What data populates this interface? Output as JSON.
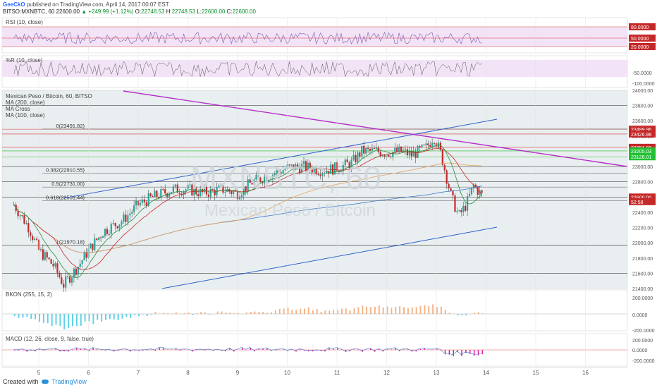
{
  "header": {
    "author": "GeeCkO",
    "published": "published on TradingView.com, April 14, 2017 00:07 EST",
    "symbol": "BITSO:MXNBTC, 60",
    "last": "22600.00",
    "change": "▲ +249.99 (+1.12%)",
    "o_label": "O:",
    "o": "22748.53",
    "h_label": "H:",
    "h": "22748.53",
    "l_label": "L:",
    "l": "22600.00",
    "c_label": "C:",
    "c": "22600.00"
  },
  "footer": {
    "created": "Created with",
    "brand": "TradingView"
  },
  "colors": {
    "up": "#26a69a",
    "down": "#c62828",
    "ma200": "#3a78c9",
    "ma100": "#e6a15a",
    "ma20": "#c62828",
    "fib": "#333",
    "purple": "#b62ec9",
    "bluetrend": "#2e62c9",
    "rsi": "#7b5aa8",
    "band": "#f3e3f7",
    "bkon_fill": "#f2a36b",
    "bkon_neg": "#3ac8e0",
    "bkon_pos": "#2fa84a",
    "macd_hist": "#e020a0"
  },
  "panels": {
    "rsi": {
      "label": "RSI (10, close)",
      "levels": [
        "80.0000",
        "50.0000",
        "20.0000"
      ]
    },
    "wr": {
      "label": "%R (10, close)",
      "ticks": [
        "-50.0000",
        "-100.0000"
      ]
    },
    "main": {
      "title": "Mexican Peso / Bitcoin, 60, BITSO",
      "ma200": "MA (200, close)",
      "macross": "MA Cross",
      "ma100": "MA (100, close)",
      "watermark1": "MXNBTC, 60",
      "watermark2": "Mexican Peso / Bitcoin",
      "fib": [
        {
          "label": "0(23491.82)",
          "price": 23491.82
        },
        {
          "label": "0.382(22910.55)",
          "price": 22910.55
        },
        {
          "label": "0.5(22731.00)",
          "price": 22731.0
        },
        {
          "label": "0.618(22551.44)",
          "price": 22551.44
        },
        {
          "label": "1(21970.18)",
          "price": 21970.18
        }
      ],
      "price_ticks": [
        "24000.00",
        "23800.00",
        "23600.00",
        "23400.00",
        "23200.00",
        "23000.00",
        "22800.00",
        "22600.00",
        "22400.00",
        "22200.00",
        "22000.00",
        "21800.00",
        "21600.00",
        "21400.00"
      ],
      "price_badges": [
        {
          "text": "23489.96",
          "price": 23489.96,
          "bg": "#c62828"
        },
        {
          "text": "23426.98",
          "price": 23426.98,
          "bg": "#c62828"
        },
        {
          "text": "23251.99",
          "price": 23251.99,
          "bg": "#c62828"
        },
        {
          "text": "23205.03",
          "price": 23205.03,
          "bg": "#22c032"
        },
        {
          "text": "23128.01",
          "price": 23128.01,
          "bg": "#22c032"
        },
        {
          "text": "22600.00",
          "price": 22600.0,
          "bg": "#c62828"
        },
        {
          "text": "52:58",
          "price": 22540,
          "bg": "#c62828"
        }
      ]
    },
    "bkon": {
      "label": "BKON (255, 15, 2)",
      "ticks": [
        "200.0000",
        "0.0000",
        "-200.0000"
      ]
    },
    "macd": {
      "label": "MACD (12, 26, close, 9, false, true)",
      "ticks": [
        "200.0000",
        "0.0000",
        "-200.0000"
      ]
    }
  },
  "xaxis": {
    "labels": [
      "5",
      "6",
      "7",
      "8",
      "9",
      "10",
      "11",
      "12",
      "13",
      "14",
      "15",
      "16"
    ]
  },
  "chart_data": {
    "type": "candlestick",
    "title": "Mexican Peso / Bitcoin, 60, BITSO",
    "ylim": [
      21400,
      24000
    ],
    "x_labels": [
      "5",
      "6",
      "7",
      "8",
      "9",
      "10",
      "11",
      "12",
      "13",
      "14",
      "15",
      "16"
    ],
    "approx_close_path": [
      {
        "day": 4.5,
        "close": 22500
      },
      {
        "day": 4.8,
        "close": 22200
      },
      {
        "day": 5.0,
        "close": 21900
      },
      {
        "day": 5.3,
        "close": 21700
      },
      {
        "day": 5.5,
        "close": 21450
      },
      {
        "day": 5.8,
        "close": 21700
      },
      {
        "day": 6.0,
        "close": 21900
      },
      {
        "day": 6.3,
        "close": 22150
      },
      {
        "day": 6.7,
        "close": 22300
      },
      {
        "day": 7.0,
        "close": 22500
      },
      {
        "day": 7.3,
        "close": 22600
      },
      {
        "day": 7.7,
        "close": 22700
      },
      {
        "day": 8.0,
        "close": 22700
      },
      {
        "day": 8.3,
        "close": 22650
      },
      {
        "day": 8.7,
        "close": 22700
      },
      {
        "day": 9.0,
        "close": 22650
      },
      {
        "day": 9.3,
        "close": 22800
      },
      {
        "day": 9.7,
        "close": 22900
      },
      {
        "day": 10.0,
        "close": 22980
      },
      {
        "day": 10.3,
        "close": 23000
      },
      {
        "day": 10.7,
        "close": 22950
      },
      {
        "day": 11.0,
        "close": 22980
      },
      {
        "day": 11.3,
        "close": 23050
      },
      {
        "day": 11.5,
        "close": 23200
      },
      {
        "day": 11.8,
        "close": 23200
      },
      {
        "day": 12.0,
        "close": 23180
      },
      {
        "day": 12.3,
        "close": 23200
      },
      {
        "day": 12.5,
        "close": 23150
      },
      {
        "day": 12.8,
        "close": 23250
      },
      {
        "day": 12.95,
        "close": 23400
      },
      {
        "day": 13.1,
        "close": 23150
      },
      {
        "day": 13.3,
        "close": 22600
      },
      {
        "day": 13.45,
        "close": 22350
      },
      {
        "day": 13.6,
        "close": 22500
      },
      {
        "day": 13.75,
        "close": 22750
      },
      {
        "day": 13.95,
        "close": 22600
      }
    ]
  }
}
